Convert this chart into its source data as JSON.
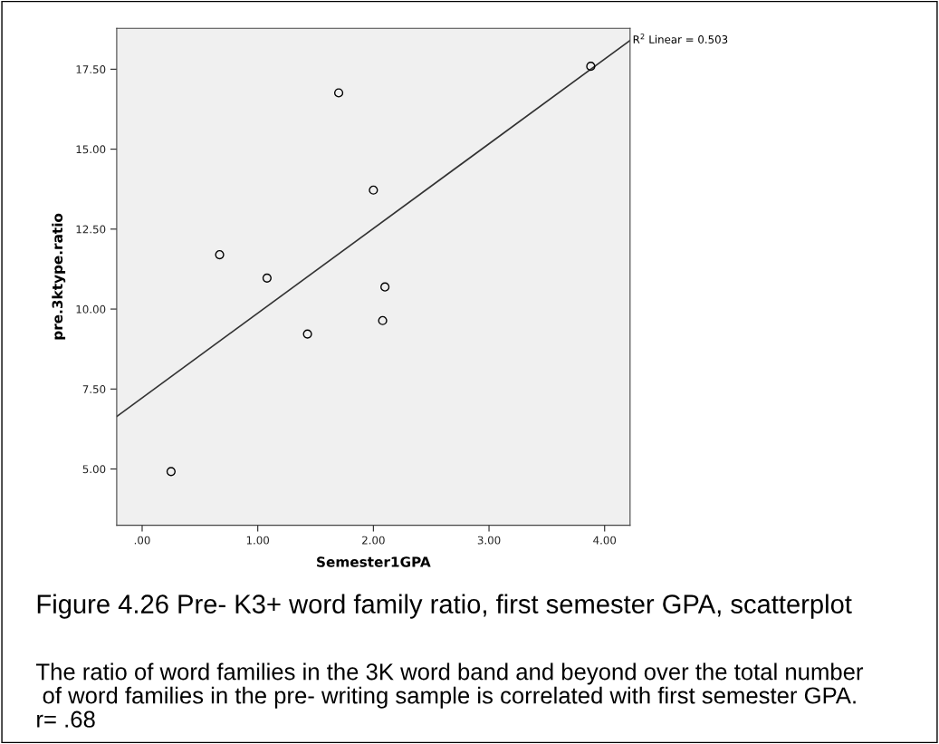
{
  "chart_data": {
    "type": "scatter",
    "xlabel": "Semester1GPA",
    "ylabel": "pre.3ktype.ratio",
    "title": "Figure 4.26 Pre- K3+ word family ratio, first semester GPA, scatterplot",
    "annotations": [
      {
        "text": "R$^{2}$ Linear = 0.503",
        "x": 4.22,
        "y": 18.4
      },
      "The ratio of word families in the 3K word band and beyond over the total number\n of word families in the pre- writing sample is correlated with first semester GPA.\nr= .68"
    ],
    "series": [
      {
        "color": "#000000",
        "marker": "circle",
        "x": [
          0.25,
          0.67,
          1.08,
          1.43,
          1.7,
          2.0,
          2.1,
          2.08,
          3.88
        ],
        "values": [
          4.92,
          11.7,
          10.97,
          9.22,
          16.76,
          13.72,
          10.69,
          9.64,
          17.59
        ]
      },
      {
        "type": "line",
        "color": "#333333",
        "x": [
          -0.22,
          4.22
        ],
        "values": [
          6.64,
          18.4
        ]
      }
    ],
    "xlim": [
      -0.22,
      4.22
    ],
    "ylim": [
      3.24,
      18.78
    ],
    "xticks": [
      {
        "value": 0,
        "label": ".00"
      },
      {
        "value": 1,
        "label": "1.00"
      },
      {
        "value": 2,
        "label": "2.00"
      },
      {
        "value": 3,
        "label": "3.00"
      },
      {
        "value": 4,
        "label": "4.00"
      }
    ],
    "yticks": [
      {
        "value": 5,
        "label": "5.00"
      },
      {
        "value": 7.5,
        "label": "7.50"
      },
      {
        "value": 10,
        "label": "10.00"
      },
      {
        "value": 12.5,
        "label": "12.50"
      },
      {
        "value": 15,
        "label": "15.00"
      },
      {
        "value": 17.5,
        "label": "17.50"
      }
    ],
    "grid": false,
    "legend": false
  }
}
